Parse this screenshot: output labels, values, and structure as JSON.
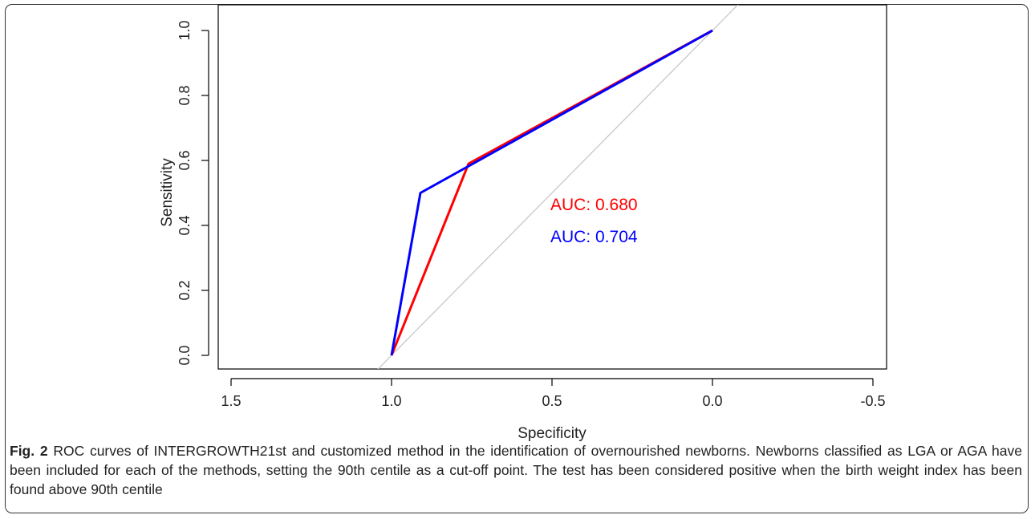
{
  "chart_data": {
    "type": "line",
    "xlabel": "Specificity",
    "ylabel": "Sensitivity",
    "xlim": [
      1.5,
      -0.5
    ],
    "ylim": [
      0.0,
      1.0
    ],
    "x_axis_reversed": true,
    "xticks": [
      1.5,
      1.0,
      0.5,
      0.0,
      -0.5
    ],
    "xtick_labels": [
      "1.5",
      "1.0",
      "0.5",
      "0.0",
      "-0.5"
    ],
    "yticks": [
      0.0,
      0.2,
      0.4,
      0.6,
      0.8,
      1.0
    ],
    "ytick_labels": [
      "0.0",
      "0.2",
      "0.4",
      "0.6",
      "0.8",
      "1.0"
    ],
    "grid": false,
    "reference_line": {
      "x": [
        1.0,
        0.0
      ],
      "y": [
        0.0,
        1.0
      ],
      "color": "#c8c8c8"
    },
    "series": [
      {
        "x": [
          1.0,
          0.76,
          0.0
        ],
        "y": [
          0.0,
          0.59,
          1.0
        ],
        "color": "#ff0000",
        "auc_label": "AUC: 0.680"
      },
      {
        "x": [
          1.0,
          0.91,
          0.0
        ],
        "y": [
          0.0,
          0.5,
          1.0
        ],
        "color": "#0000ff",
        "auc_label": "AUC: 0.704"
      }
    ]
  },
  "caption": {
    "label": "Fig. 2",
    "text": "ROC curves of INTERGROWTH21st and customized method in the identification of overnourished newborns. Newborns classified as LGA or AGA have been included for each of the methods, setting the 90th centile as a cut-off point. The test has been considered positive when the birth weight index has been found above 90th centile"
  }
}
